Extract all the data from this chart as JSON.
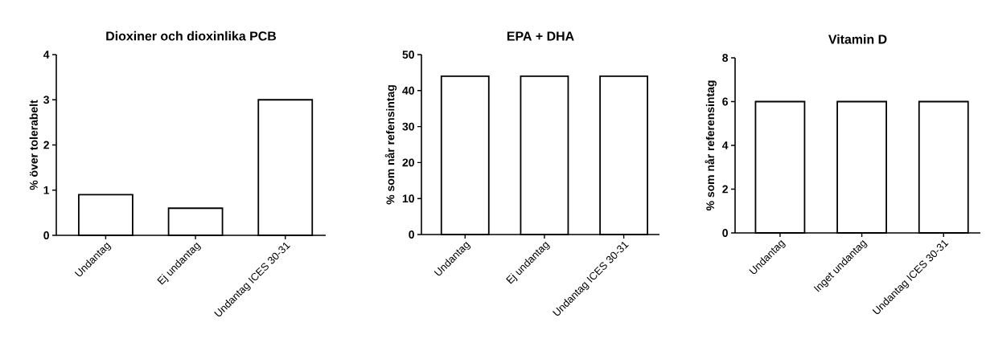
{
  "chart_data": [
    {
      "type": "bar",
      "title": "Dioxiner och dioxinlika PCB",
      "ylabel": "% över tolerabelt",
      "categories": [
        "Undantag",
        "Ej undantag",
        "Undantag ICES 30-31"
      ],
      "values": [
        0.9,
        0.6,
        3.0
      ],
      "color": "#ffffff",
      "ylim": [
        0,
        4
      ],
      "yticks": [
        0,
        1,
        2,
        3,
        4
      ],
      "grid": false
    },
    {
      "type": "bar",
      "title": "EPA + DHA",
      "ylabel": "% som når refensintag",
      "categories": [
        "Undantag",
        "Ej undantag",
        "Undantag ICES 30-31"
      ],
      "values": [
        44,
        44,
        44
      ],
      "color": "#ffffff",
      "ylim": [
        0,
        50
      ],
      "yticks": [
        0,
        10,
        20,
        30,
        40,
        50
      ],
      "grid": false
    },
    {
      "type": "bar",
      "title": "Vitamin D",
      "ylabel": "% som når referensintag",
      "categories": [
        "Undantag",
        "Inget undantag",
        "Undantag ICES 30-31"
      ],
      "values": [
        6,
        6,
        6
      ],
      "color": "#ffffff",
      "ylim": [
        0,
        8
      ],
      "yticks": [
        0,
        2,
        4,
        6,
        8
      ],
      "grid": false
    }
  ]
}
